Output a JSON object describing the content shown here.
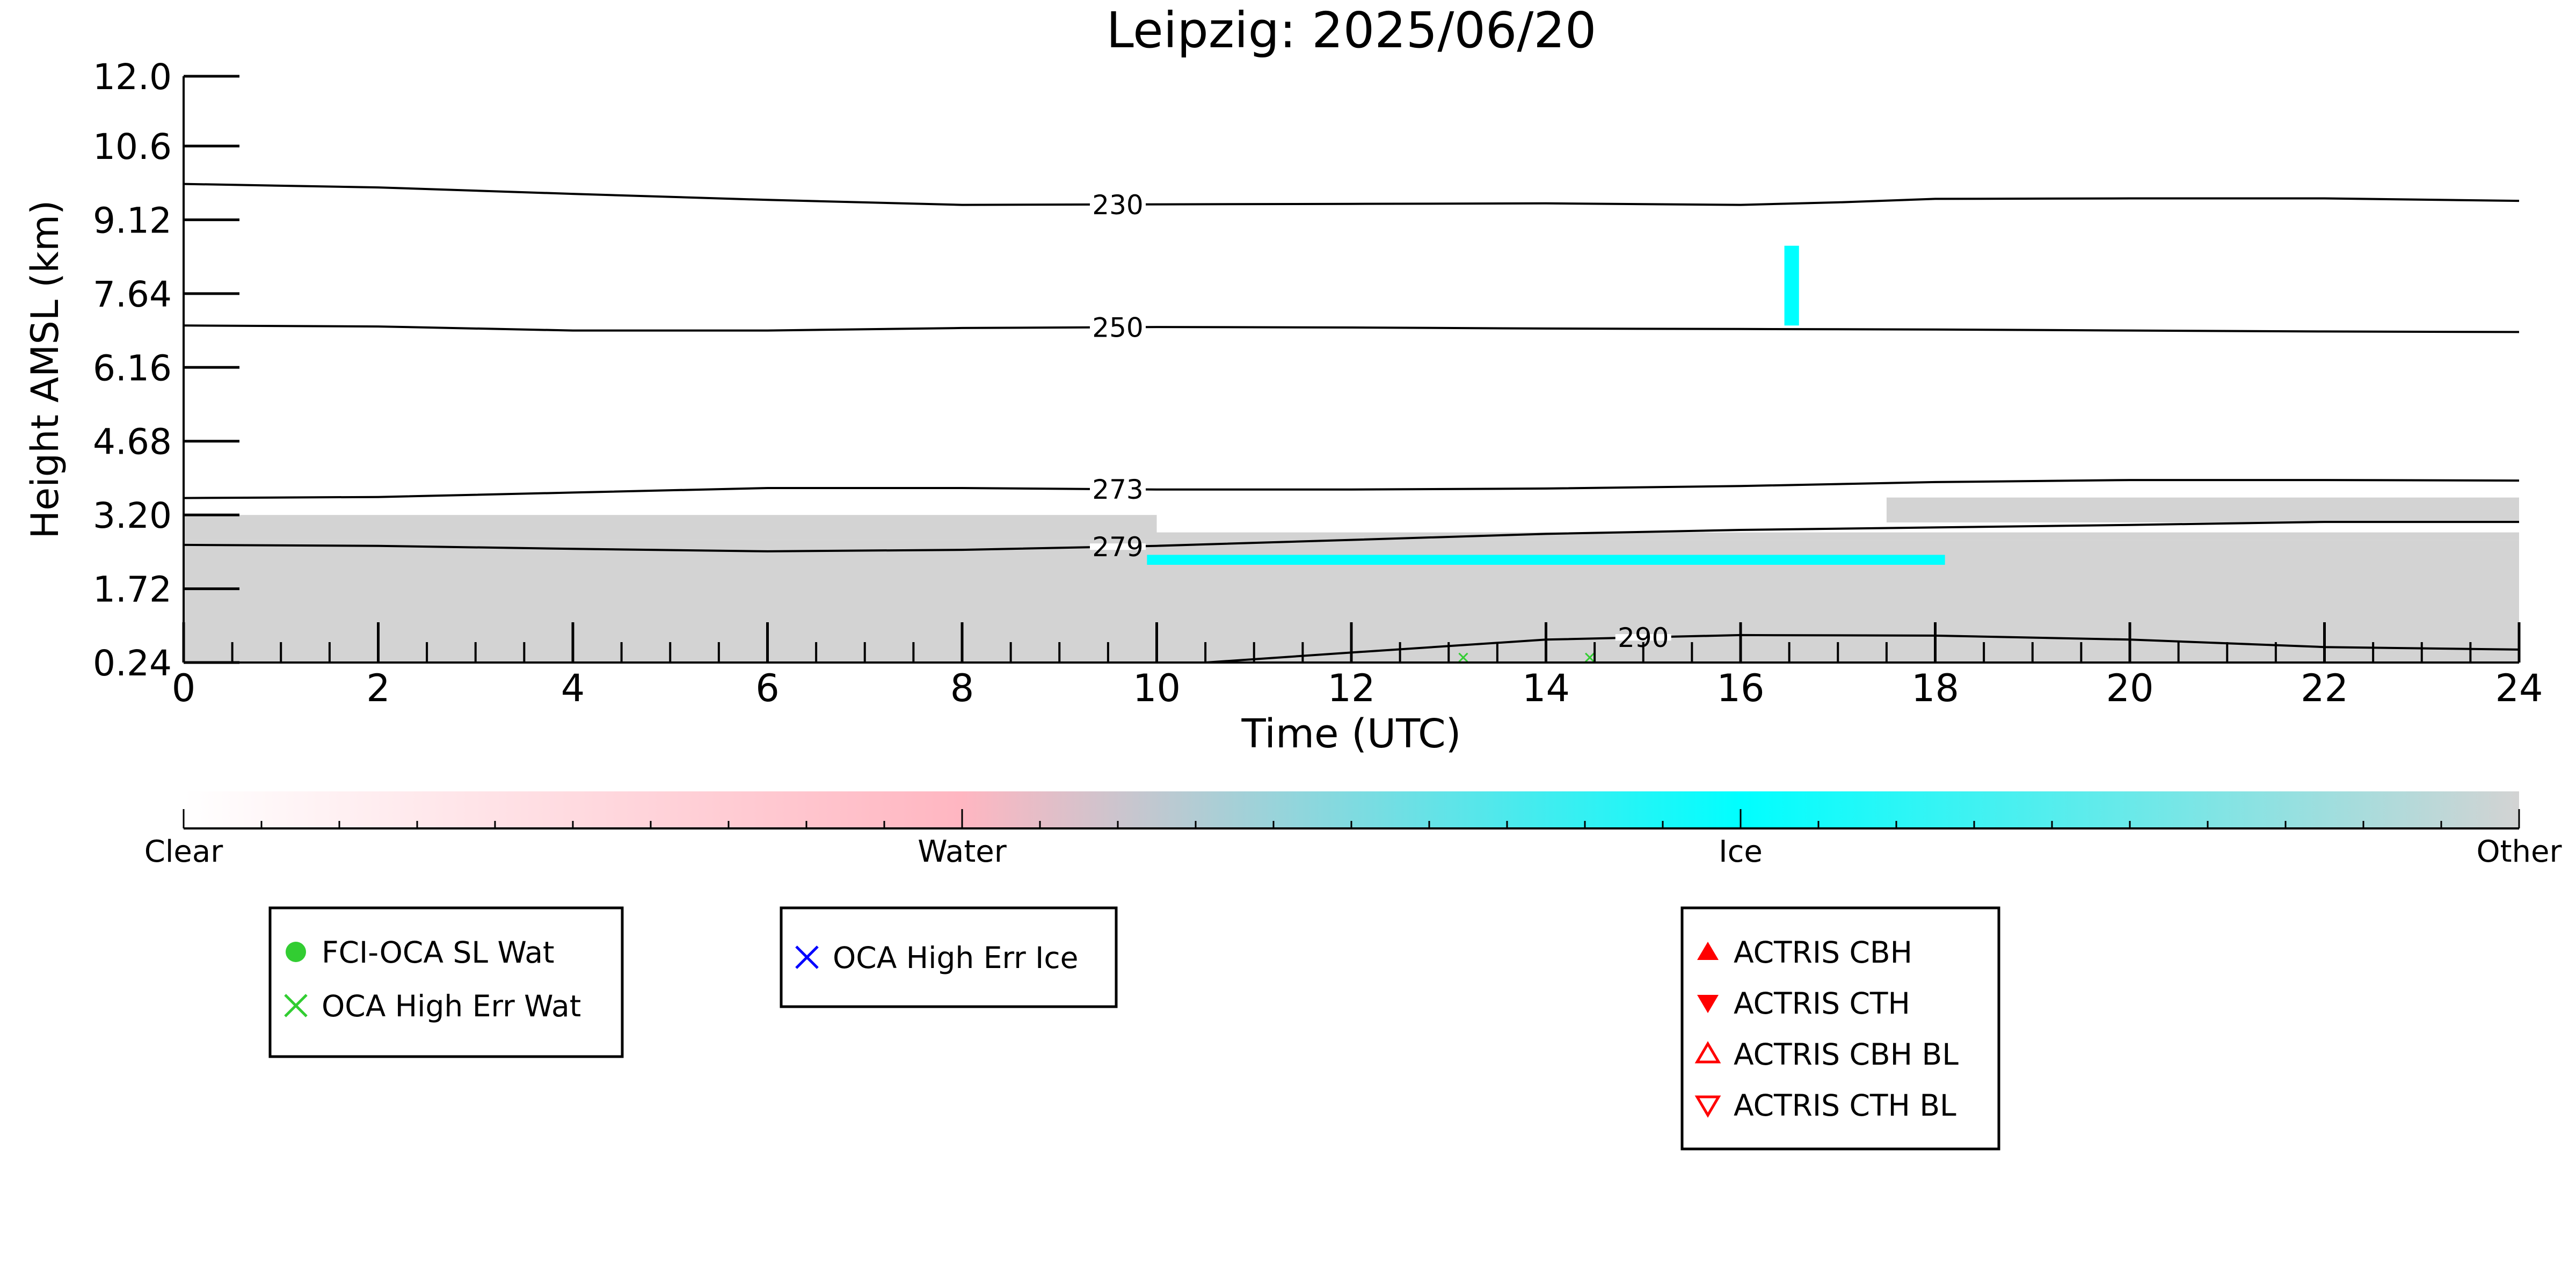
{
  "chart_data": {
    "type": "heatmap",
    "title": "Leipzig: 2025/06/20",
    "xlabel": "Time (UTC)",
    "ylabel": "Height AMSL (km)",
    "xlim": [
      0,
      24
    ],
    "ylim": [
      0.24,
      12.0
    ],
    "x_ticks": [
      "0",
      "2",
      "4",
      "6",
      "8",
      "10",
      "12",
      "14",
      "16",
      "18",
      "20",
      "22",
      "24"
    ],
    "y_ticks": [
      "0.24",
      "1.72",
      "3.20",
      "4.68",
      "6.16",
      "7.64",
      "9.12",
      "10.6",
      "12.0"
    ],
    "grid": false,
    "classification_fields": [
      {
        "class": "Other",
        "x_start": 0,
        "x_end": 24,
        "y_bottom": 0.24,
        "y_top": 2.7
      },
      {
        "class": "Other",
        "x_start": 0,
        "x_end": 10,
        "y_bottom": 2.7,
        "y_top": 3.2
      },
      {
        "class": "Other",
        "x_start": 10,
        "x_end": 24,
        "y_bottom": 2.7,
        "y_top": 2.85
      },
      {
        "class": "Other",
        "x_start": 17.5,
        "x_end": 24,
        "y_bottom": 3.05,
        "y_top": 3.55
      },
      {
        "class": "Ice",
        "x_start": 9.9,
        "x_end": 18.1,
        "y_bottom": 2.2,
        "y_top": 2.4
      },
      {
        "class": "Ice",
        "x_start": 16.45,
        "x_end": 16.6,
        "y_bottom": 7.0,
        "y_top": 8.6
      }
    ],
    "contours": [
      {
        "label": "230",
        "label_x": 9.6,
        "points": [
          [
            0,
            9.84
          ],
          [
            2,
            9.77
          ],
          [
            4,
            9.64
          ],
          [
            6,
            9.52
          ],
          [
            8,
            9.42
          ],
          [
            10,
            9.43
          ],
          [
            12,
            9.44
          ],
          [
            14,
            9.45
          ],
          [
            16,
            9.42
          ],
          [
            17,
            9.47
          ],
          [
            18,
            9.54
          ],
          [
            20,
            9.55
          ],
          [
            22,
            9.55
          ],
          [
            24,
            9.5
          ]
        ]
      },
      {
        "label": "250",
        "label_x": 9.6,
        "points": [
          [
            0,
            7.0
          ],
          [
            2,
            6.98
          ],
          [
            4,
            6.9
          ],
          [
            6,
            6.9
          ],
          [
            8,
            6.95
          ],
          [
            10,
            6.97
          ],
          [
            12,
            6.96
          ],
          [
            14,
            6.94
          ],
          [
            16,
            6.93
          ],
          [
            18,
            6.92
          ],
          [
            20,
            6.9
          ],
          [
            22,
            6.88
          ],
          [
            24,
            6.87
          ]
        ]
      },
      {
        "label": "273",
        "label_x": 9.6,
        "points": [
          [
            0,
            3.54
          ],
          [
            2,
            3.56
          ],
          [
            4,
            3.65
          ],
          [
            6,
            3.74
          ],
          [
            8,
            3.74
          ],
          [
            10,
            3.71
          ],
          [
            12,
            3.71
          ],
          [
            14,
            3.73
          ],
          [
            16,
            3.78
          ],
          [
            18,
            3.86
          ],
          [
            20,
            3.9
          ],
          [
            22,
            3.9
          ],
          [
            24,
            3.89
          ]
        ]
      },
      {
        "label": "279",
        "label_x": 9.6,
        "points": [
          [
            0,
            2.6
          ],
          [
            2,
            2.58
          ],
          [
            4,
            2.52
          ],
          [
            6,
            2.47
          ],
          [
            8,
            2.5
          ],
          [
            10,
            2.58
          ],
          [
            12,
            2.7
          ],
          [
            14,
            2.82
          ],
          [
            16,
            2.9
          ],
          [
            18,
            2.95
          ],
          [
            20,
            3.0
          ],
          [
            22,
            3.06
          ],
          [
            24,
            3.06
          ]
        ]
      },
      {
        "label": "290",
        "label_x": 15.0,
        "points": [
          [
            10.5,
            0.24
          ],
          [
            12,
            0.44
          ],
          [
            14,
            0.7
          ],
          [
            16,
            0.79
          ],
          [
            18,
            0.78
          ],
          [
            20,
            0.7
          ],
          [
            22,
            0.55
          ],
          [
            24,
            0.5
          ]
        ]
      }
    ],
    "colorbar": {
      "labels": [
        "Clear",
        "Water",
        "Ice",
        "Other"
      ],
      "stops": [
        {
          "value": 0.0,
          "color": "#ffffff"
        },
        {
          "value": 0.333,
          "color": "#ffb6c1"
        },
        {
          "value": 0.667,
          "color": "#00ffff"
        },
        {
          "value": 1.0,
          "color": "#d3d3d3"
        }
      ]
    },
    "legends": [
      {
        "entries": [
          {
            "label": "FCI-OCA SL Wat",
            "marker": "filled-circle",
            "color": "#32cd32"
          },
          {
            "label": "OCA High Err Wat",
            "marker": "x",
            "color": "#32cd32"
          }
        ]
      },
      {
        "entries": [
          {
            "label": "OCA High Err Ice",
            "marker": "x",
            "color": "#0000ff"
          }
        ]
      },
      {
        "entries": [
          {
            "label": "ACTRIS CBH",
            "marker": "filled-triangle-up",
            "color": "#ff0000"
          },
          {
            "label": "ACTRIS CTH",
            "marker": "filled-triangle-down",
            "color": "#ff0000"
          },
          {
            "label": "ACTRIS CBH BL",
            "marker": "open-triangle-up",
            "color": "#ff0000"
          },
          {
            "label": "ACTRIS CTH BL",
            "marker": "open-triangle-down",
            "color": "#ff0000"
          }
        ]
      }
    ],
    "point_markers": [
      {
        "series": "OCA High Err Wat",
        "x": 13.15,
        "y": 0.34
      },
      {
        "series": "OCA High Err Wat",
        "x": 14.45,
        "y": 0.34
      }
    ],
    "colors": {
      "other": "#d3d3d3",
      "ice": "#00ffff",
      "contour": "#000000"
    }
  }
}
